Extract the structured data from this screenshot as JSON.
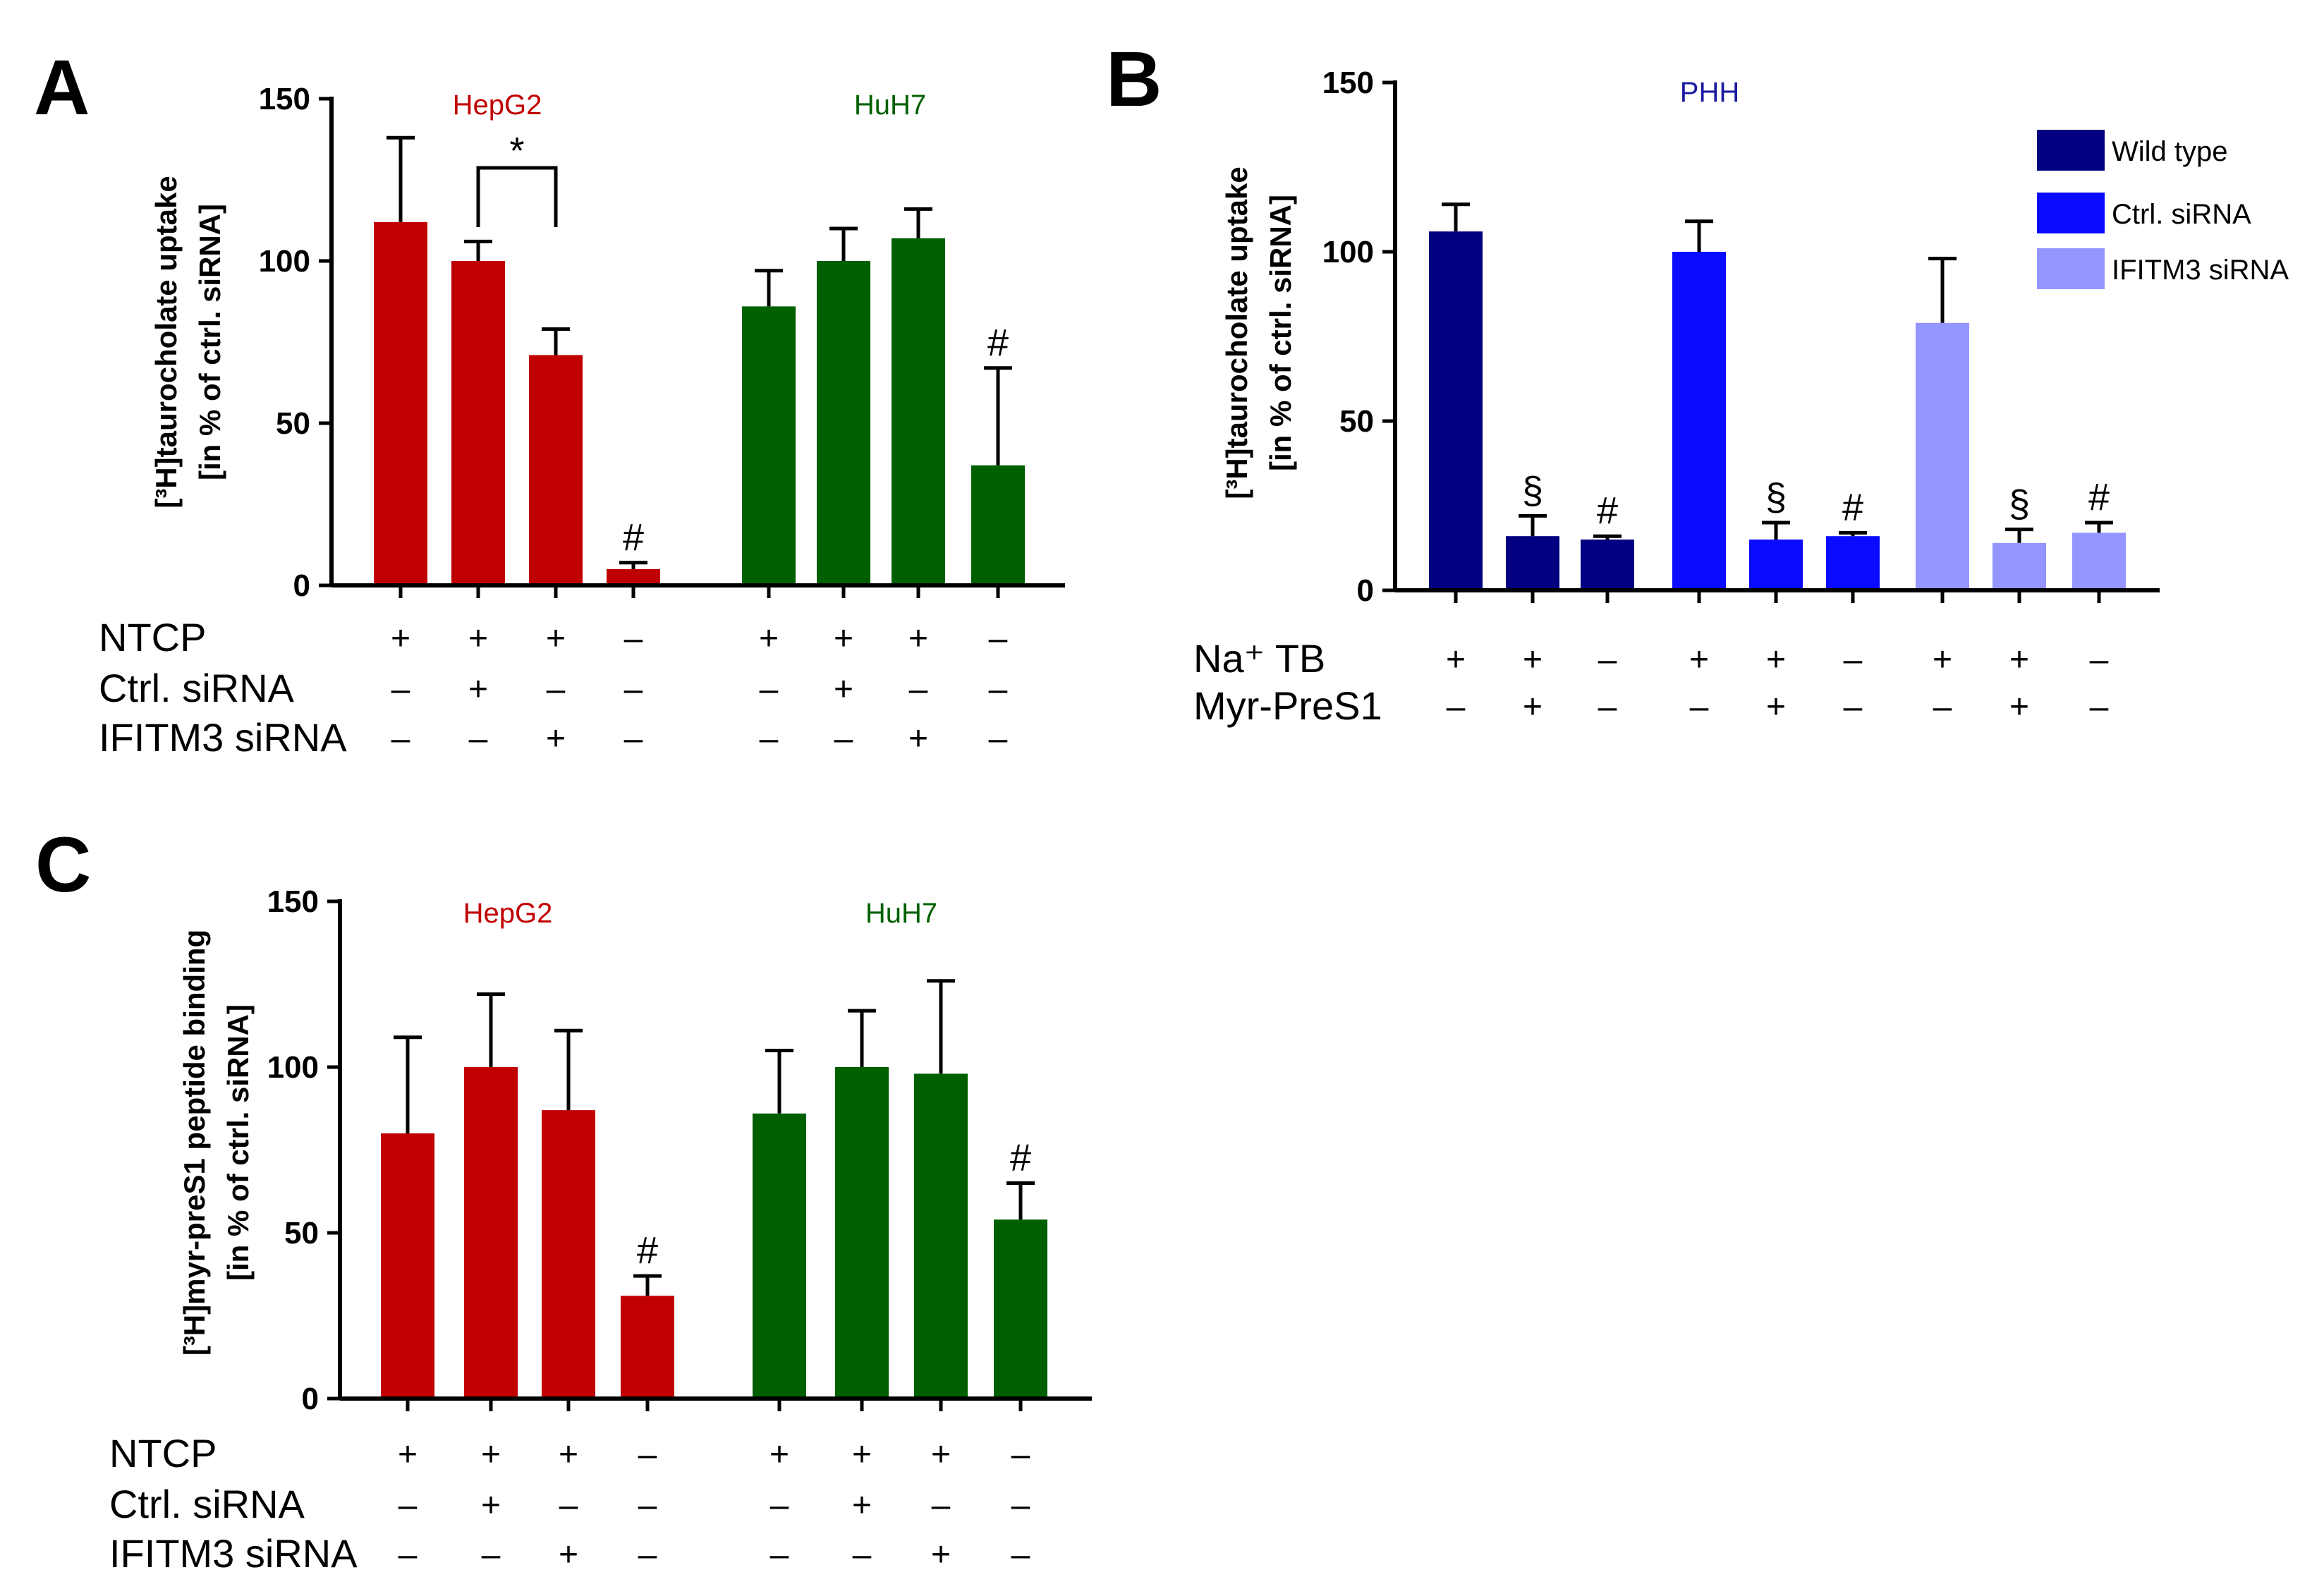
{
  "chart_data": [
    {
      "panel": "A",
      "type": "bar",
      "ylabel_lines": [
        "[³H]taurocholate uptake",
        "[in % of ctrl. siRNA]"
      ],
      "ylim": [
        0,
        150
      ],
      "yticks": [
        0,
        50,
        100,
        150
      ],
      "groups": [
        {
          "name": "HepG2",
          "color": "#c00000"
        },
        {
          "name": "HuH7",
          "color": "#006000"
        }
      ],
      "bars": [
        {
          "group": 0,
          "value": 112,
          "error": 26,
          "annotation": ""
        },
        {
          "group": 0,
          "value": 100,
          "error": 6,
          "annotation": ""
        },
        {
          "group": 0,
          "value": 71,
          "error": 8,
          "annotation": ""
        },
        {
          "group": 0,
          "value": 5,
          "error": 2,
          "annotation": "#"
        },
        {
          "group": 1,
          "value": 86,
          "error": 11,
          "annotation": ""
        },
        {
          "group": 1,
          "value": 100,
          "error": 10,
          "annotation": ""
        },
        {
          "group": 1,
          "value": 107,
          "error": 9,
          "annotation": ""
        },
        {
          "group": 1,
          "value": 37,
          "error": 30,
          "annotation": "#"
        }
      ],
      "significance": [
        {
          "from": 1,
          "to": 2,
          "label": "*"
        }
      ],
      "condition_rows": [
        {
          "label": "NTCP",
          "signs": [
            "+",
            "+",
            "+",
            "-",
            "+",
            "+",
            "+",
            "-"
          ]
        },
        {
          "label": "Ctrl. siRNA",
          "signs": [
            "-",
            "+",
            "-",
            "-",
            "-",
            "+",
            "-",
            "-"
          ]
        },
        {
          "label": "IFITM3 siRNA",
          "signs": [
            "-",
            "-",
            "+",
            "-",
            "-",
            "-",
            "+",
            "-"
          ]
        }
      ]
    },
    {
      "panel": "B",
      "type": "bar",
      "ylabel_lines": [
        "[³H]taurocholate uptake",
        "[in % of ctrl. siRNA]"
      ],
      "ylim": [
        0,
        150
      ],
      "yticks": [
        0,
        50,
        100,
        150
      ],
      "groups": [
        {
          "name": "PHH",
          "color": "#1a1aa0"
        }
      ],
      "legend": [
        {
          "label": "Wild type",
          "color": "#000080"
        },
        {
          "label": "Ctrl. siRNA",
          "color": "#0a0aff"
        },
        {
          "label": "IFITM3 siRNA",
          "color": "#9595ff"
        }
      ],
      "bars": [
        {
          "series": 0,
          "value": 106,
          "error": 8,
          "annotation": ""
        },
        {
          "series": 0,
          "value": 16,
          "error": 6,
          "annotation": "§"
        },
        {
          "series": 0,
          "value": 15,
          "error": 1,
          "annotation": "#"
        },
        {
          "series": 1,
          "value": 100,
          "error": 9,
          "annotation": ""
        },
        {
          "series": 1,
          "value": 15,
          "error": 5,
          "annotation": "§"
        },
        {
          "series": 1,
          "value": 16,
          "error": 1,
          "annotation": "#"
        },
        {
          "series": 2,
          "value": 79,
          "error": 19,
          "annotation": ""
        },
        {
          "series": 2,
          "value": 14,
          "error": 4,
          "annotation": "§"
        },
        {
          "series": 2,
          "value": 17,
          "error": 3,
          "annotation": "#"
        }
      ],
      "condition_rows": [
        {
          "label": "Na⁺ TB",
          "signs": [
            "+",
            "+",
            "-",
            "+",
            "+",
            "-",
            "+",
            "+",
            "-"
          ]
        },
        {
          "label": "Myr-PreS1",
          "signs": [
            "-",
            "+",
            "-",
            "-",
            "+",
            "-",
            "-",
            "+",
            "-"
          ]
        }
      ]
    },
    {
      "panel": "C",
      "type": "bar",
      "ylabel_lines": [
        "[³H]myr-preS1 peptide binding",
        "[in % of ctrl. siRNA]"
      ],
      "ylim": [
        0,
        150
      ],
      "yticks": [
        0,
        50,
        100,
        150
      ],
      "groups": [
        {
          "name": "HepG2",
          "color": "#c00000"
        },
        {
          "name": "HuH7",
          "color": "#006000"
        }
      ],
      "bars": [
        {
          "group": 0,
          "value": 80,
          "error": 29,
          "annotation": ""
        },
        {
          "group": 0,
          "value": 100,
          "error": 22,
          "annotation": ""
        },
        {
          "group": 0,
          "value": 87,
          "error": 24,
          "annotation": ""
        },
        {
          "group": 0,
          "value": 31,
          "error": 6,
          "annotation": "#"
        },
        {
          "group": 1,
          "value": 86,
          "error": 19,
          "annotation": ""
        },
        {
          "group": 1,
          "value": 100,
          "error": 17,
          "annotation": ""
        },
        {
          "group": 1,
          "value": 98,
          "error": 28,
          "annotation": ""
        },
        {
          "group": 1,
          "value": 54,
          "error": 11,
          "annotation": "#"
        }
      ],
      "condition_rows": [
        {
          "label": "NTCP",
          "signs": [
            "+",
            "+",
            "+",
            "-",
            "+",
            "+",
            "+",
            "-"
          ]
        },
        {
          "label": "Ctrl. siRNA",
          "signs": [
            "-",
            "+",
            "-",
            "-",
            "-",
            "+",
            "-",
            "-"
          ]
        },
        {
          "label": "IFITM3 siRNA",
          "signs": [
            "-",
            "-",
            "+",
            "-",
            "-",
            "-",
            "+",
            "-"
          ]
        }
      ]
    }
  ]
}
